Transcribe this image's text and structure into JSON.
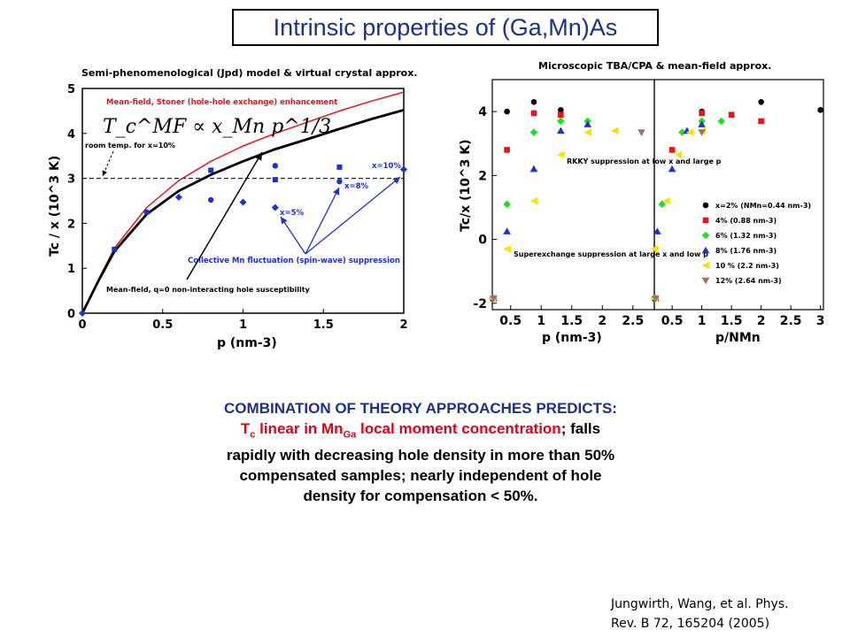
{
  "page_title": "Intrinsic properties of (Ga,Mn)As",
  "chart_data": [
    {
      "type": "line",
      "title": "Semi-phenomenological (Jpd) model & virtual crystal approx.",
      "xlabel": "p (nm-3)",
      "ylabel": "Tc / x (10^3 K)",
      "xlim": [
        0,
        2
      ],
      "ylim": [
        0,
        5
      ],
      "xticks": [
        "0",
        "0.5",
        "1",
        "1.5",
        "2"
      ],
      "yticks": [
        "0",
        "1",
        "2",
        "3",
        "4",
        "5"
      ],
      "grid": false,
      "formula": "T_c^MF ∝ x_Mn p^1/3",
      "series": [
        {
          "name": "Mean-field, Stoner (hole-hole exchange) enhancement",
          "color": "#e8141c",
          "x": [
            0,
            0.1,
            0.2,
            0.4,
            0.6,
            0.8,
            1.0,
            1.2,
            1.4,
            1.6,
            1.8,
            2.0
          ],
          "y": [
            0,
            0.75,
            1.45,
            2.35,
            2.95,
            3.38,
            3.72,
            4.0,
            4.25,
            4.5,
            4.72,
            4.92
          ]
        },
        {
          "name": "Mean-field, q=0 non-interacting hole susceptibility",
          "color": "#000000",
          "x": [
            0,
            0.1,
            0.2,
            0.4,
            0.6,
            0.8,
            1.0,
            1.2,
            1.4,
            1.6,
            1.8,
            2.0
          ],
          "y": [
            0,
            0.72,
            1.38,
            2.2,
            2.72,
            3.08,
            3.38,
            3.65,
            3.87,
            4.1,
            4.32,
            4.52
          ]
        }
      ],
      "markers": [
        {
          "x": 0,
          "y": 0
        },
        {
          "x": 0.2,
          "y": 1.42
        },
        {
          "x": 0.4,
          "y": 2.25
        },
        {
          "x": 0.6,
          "y": 2.58
        },
        {
          "x": 0.8,
          "y": 3.18
        },
        {
          "x": 0.8,
          "y": 2.52
        },
        {
          "x": 1.0,
          "y": 2.47
        },
        {
          "x": 1.2,
          "y": 2.97
        },
        {
          "x": 1.2,
          "y": 3.28
        },
        {
          "x": 1.2,
          "y": 2.35
        },
        {
          "x": 1.6,
          "y": 3.25
        },
        {
          "x": 1.6,
          "y": 2.93
        },
        {
          "x": 2.0,
          "y": 3.2
        }
      ],
      "reference_line": {
        "y": 3.0,
        "label": "room temp. for x=10%"
      },
      "annotations": {
        "red_curve": "Mean-field, Stoner (hole-hole exchange) enhancement",
        "black_curve": "Mean-field, q=0 non-interacting hole susceptibility",
        "fluctuation": "Collective Mn fluctuation (spin-wave) suppression",
        "x10": "x=10%",
        "x8": "x=8%",
        "x5": "x=5%"
      }
    },
    {
      "type": "scatter",
      "title": "Microscopic TBA/CPA & mean-field approx.",
      "left_panel": {
        "xlabel": "p (nm-3)",
        "xlim": [
          0.2,
          2.85
        ],
        "xticks": [
          "0.5",
          "1",
          "1.5",
          "2",
          "2.5"
        ]
      },
      "right_panel": {
        "xlabel": "p/NMn",
        "xlim": [
          0.2,
          3.05
        ],
        "xticks": [
          "0.5",
          "1",
          "1.5",
          "2",
          "2.5",
          "3"
        ]
      },
      "ylabel": "Tc/x (10^3 K)",
      "ylim": [
        -2.2,
        5.0
      ],
      "yticks": [
        "-2",
        "0",
        "2",
        "4"
      ],
      "annotations": {
        "rkky": "RKKY suppression at low x and large p",
        "superexchange": "Superexchange suppression at large x and low p"
      },
      "series": [
        {
          "name": "x=2% (NMn=0.44 nm-3)",
          "color": "#000000",
          "marker": "circle",
          "left": {
            "x": [
              0.44,
              0.88,
              1.32
            ],
            "y": [
              4.0,
              4.3,
              4.05
            ]
          },
          "right": {
            "x": [
              1.0,
              2.0,
              3.0
            ],
            "y": [
              4.0,
              4.3,
              4.05
            ]
          }
        },
        {
          "name": "4% (0.88 nm-3)",
          "color": "#e8141c",
          "marker": "square",
          "left": {
            "x": [
              0.44,
              0.88,
              1.32
            ],
            "y": [
              2.8,
              3.95,
              3.9
            ]
          },
          "right": {
            "x": [
              0.5,
              1.0,
              1.5,
              2.0
            ],
            "y": [
              2.8,
              3.95,
              3.9,
              3.7
            ]
          }
        },
        {
          "name": "6% (1.32 nm-3)",
          "color": "#22dd22",
          "marker": "diamond",
          "left": {
            "x": [
              0.44,
              0.88,
              1.32,
              1.76
            ],
            "y": [
              1.1,
              3.35,
              3.7,
              3.7
            ]
          },
          "right": {
            "x": [
              0.33,
              0.67,
              1.0,
              1.33
            ],
            "y": [
              1.1,
              3.35,
              3.7,
              3.7
            ]
          }
        },
        {
          "name": "8% (1.76 nm-3)",
          "color": "#1f2fd0",
          "marker": "triangle-up",
          "left": {
            "x": [
              0.44,
              0.88,
              1.32,
              1.76
            ],
            "y": [
              0.25,
              2.2,
              3.4,
              3.6
            ]
          },
          "right": {
            "x": [
              0.25,
              0.5,
              0.75,
              1.0
            ],
            "y": [
              0.25,
              2.2,
              3.4,
              3.6
            ]
          }
        },
        {
          "name": "10 % (2.2 nm-3)",
          "color": "#f2e600",
          "marker": "triangle-left",
          "left": {
            "x": [
              0.44,
              0.88,
              1.32,
              1.76,
              2.2
            ],
            "y": [
              -0.3,
              1.2,
              2.65,
              3.35,
              3.4
            ]
          },
          "right": {
            "x": [
              0.2,
              0.4,
              0.6,
              0.8,
              1.0
            ],
            "y": [
              -0.3,
              1.2,
              2.65,
              3.35,
              3.4
            ]
          }
        },
        {
          "name": "12% (2.64 nm-3)",
          "color": "#a07070",
          "marker": "triangle-down",
          "left": {
            "x": [
              2.64
            ],
            "y": [
              3.35
            ]
          },
          "right": {
            "x": [
              1.0
            ],
            "y": [
              3.35
            ]
          }
        }
      ],
      "offscale": {
        "left": {
          "x": 0.2,
          "y": -1.85
        },
        "right": {
          "x": 0.2,
          "y": -1.85
        }
      }
    }
  ],
  "summary": {
    "line1": "COMBINATION OF THEORY APPROACHES PREDICTS",
    "line1_colon": ":",
    "line2_a": "T",
    "line2_sub_c": "c",
    "line2_b": " linear in Mn",
    "line2_sub_ga": "Ga",
    "line2_c": " local moment concentration",
    "line2_d": "; falls",
    "line3": "rapidly with decreasing hole density in more than 50%",
    "line4": "compensated samples; nearly independent of hole",
    "line5": "density  for compensation < 50%."
  },
  "citation": {
    "line1": "Jungwirth, Wang, et al. Phys.",
    "line2": "Rev. B 72, 165204 (2005)"
  },
  "colors": {
    "title": "#1f2f8f",
    "red": "#e8141c",
    "blue": "#1f2fd0"
  }
}
